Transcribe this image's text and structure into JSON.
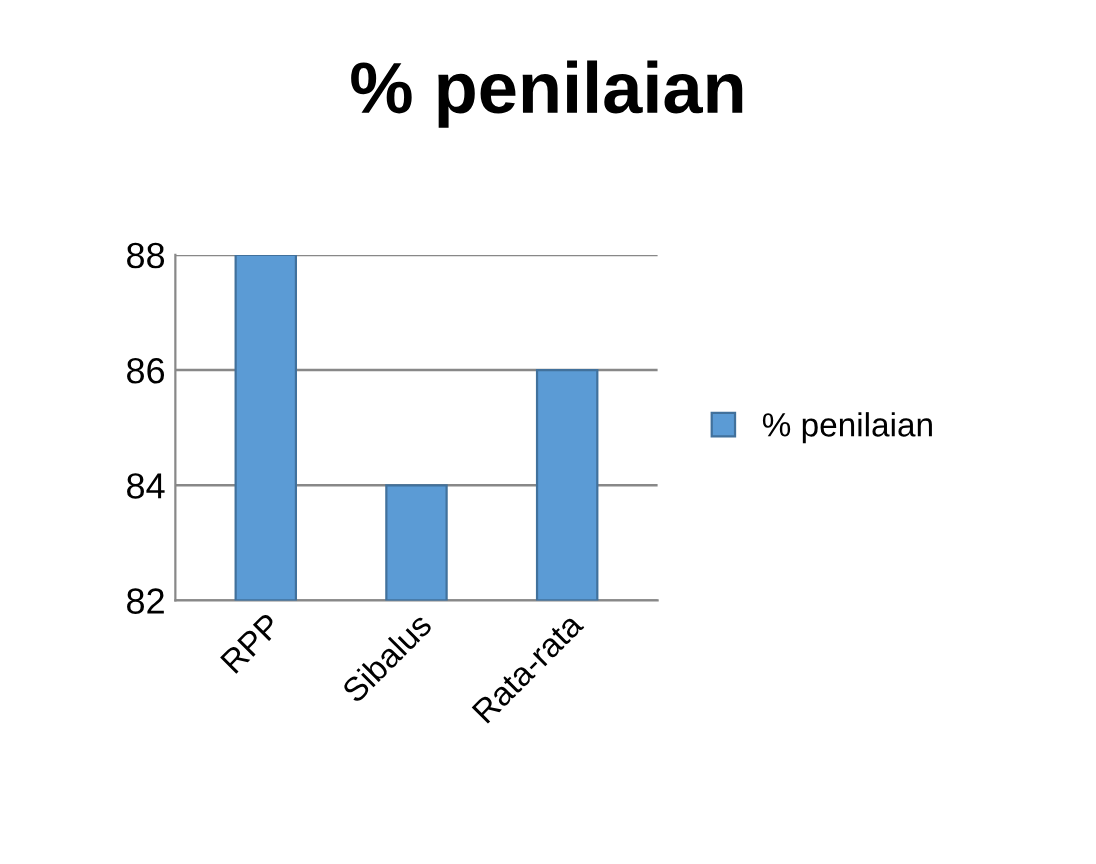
{
  "chart_data": {
    "type": "bar",
    "title": "% penilaian",
    "categories": [
      "RPP",
      "Sibalus",
      "Rata-rata"
    ],
    "series": [
      {
        "name": "% penilaian",
        "color": "#5b9bd5",
        "values": [
          88,
          84,
          86
        ]
      }
    ],
    "ylim": [
      82,
      88
    ],
    "yticks": [
      82,
      84,
      86,
      88
    ],
    "grid": "y",
    "legend": "right"
  }
}
